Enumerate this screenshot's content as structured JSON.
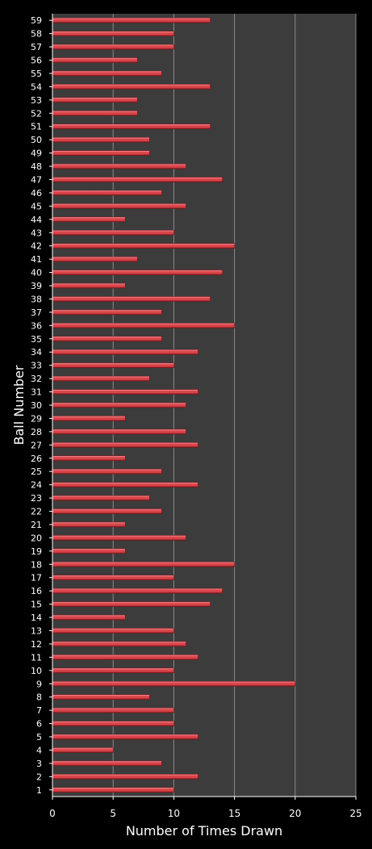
{
  "chart_data": {
    "type": "bar",
    "orientation": "horizontal",
    "title": "",
    "xlabel": "Number of Times Drawn",
    "ylabel": "Ball Number",
    "xlim": [
      0,
      25
    ],
    "xticks": [
      "0",
      "5",
      "10",
      "15",
      "20",
      "25"
    ],
    "grid": true,
    "categories": [
      "1",
      "2",
      "3",
      "4",
      "5",
      "6",
      "7",
      "8",
      "9",
      "10",
      "11",
      "12",
      "13",
      "14",
      "15",
      "16",
      "17",
      "18",
      "19",
      "20",
      "21",
      "22",
      "23",
      "24",
      "25",
      "26",
      "27",
      "28",
      "29",
      "30",
      "31",
      "32",
      "33",
      "34",
      "35",
      "36",
      "37",
      "38",
      "39",
      "40",
      "41",
      "42",
      "43",
      "44",
      "45",
      "46",
      "47",
      "48",
      "49",
      "50",
      "51",
      "52",
      "53",
      "54",
      "55",
      "56",
      "57",
      "58",
      "59"
    ],
    "values": [
      10,
      12,
      9,
      5,
      12,
      10,
      10,
      8,
      20,
      10,
      12,
      11,
      10,
      6,
      13,
      14,
      10,
      15,
      6,
      11,
      6,
      9,
      8,
      12,
      9,
      6,
      12,
      11,
      6,
      11,
      12,
      8,
      10,
      12,
      9,
      15,
      9,
      13,
      6,
      14,
      7,
      15,
      10,
      6,
      11,
      9,
      14,
      11,
      8,
      8,
      13,
      7,
      7,
      13,
      9,
      7,
      10,
      10,
      13
    ],
    "colors": {
      "background": "#000000",
      "plot_area": "#3c3c3c",
      "gridline": "#8a8a8a",
      "bar": "#d9444a",
      "bar_highlight": "#f7a3a6",
      "bar_shadow": "#7a1418",
      "text": "#ffffff"
    }
  }
}
